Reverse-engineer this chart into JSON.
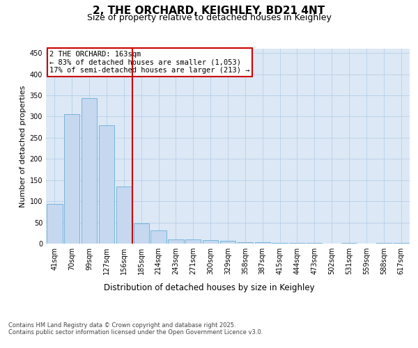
{
  "title": "2, THE ORCHARD, KEIGHLEY, BD21 4NT",
  "subtitle": "Size of property relative to detached houses in Keighley",
  "xlabel": "Distribution of detached houses by size in Keighley",
  "ylabel": "Number of detached properties",
  "categories": [
    "41sqm",
    "70sqm",
    "99sqm",
    "127sqm",
    "156sqm",
    "185sqm",
    "214sqm",
    "243sqm",
    "271sqm",
    "300sqm",
    "329sqm",
    "358sqm",
    "387sqm",
    "415sqm",
    "444sqm",
    "473sqm",
    "502sqm",
    "531sqm",
    "559sqm",
    "588sqm",
    "617sqm"
  ],
  "values": [
    93,
    305,
    344,
    280,
    135,
    47,
    32,
    10,
    10,
    9,
    7,
    4,
    3,
    2,
    1,
    1,
    0,
    2,
    0,
    2,
    2
  ],
  "bar_color": "#c5d8f0",
  "bar_edge_color": "#6aaed6",
  "vline_color": "#cc0000",
  "annotation_title": "2 THE ORCHARD: 163sqm",
  "annotation_line1": "← 83% of detached houses are smaller (1,053)",
  "annotation_line2": "17% of semi-detached houses are larger (213) →",
  "annotation_box_color": "#cc0000",
  "annotation_bg_color": "#ffffff",
  "ylim": [
    0,
    460
  ],
  "yticks": [
    0,
    50,
    100,
    150,
    200,
    250,
    300,
    350,
    400,
    450
  ],
  "bg_color": "#dce8f5",
  "fig_bg_color": "#ffffff",
  "footer_line1": "Contains HM Land Registry data © Crown copyright and database right 2025.",
  "footer_line2": "Contains public sector information licensed under the Open Government Licence v3.0.",
  "title_fontsize": 11,
  "subtitle_fontsize": 9,
  "xlabel_fontsize": 8.5,
  "ylabel_fontsize": 8,
  "tick_fontsize": 7,
  "footer_fontsize": 6,
  "annotation_fontsize": 7.5
}
